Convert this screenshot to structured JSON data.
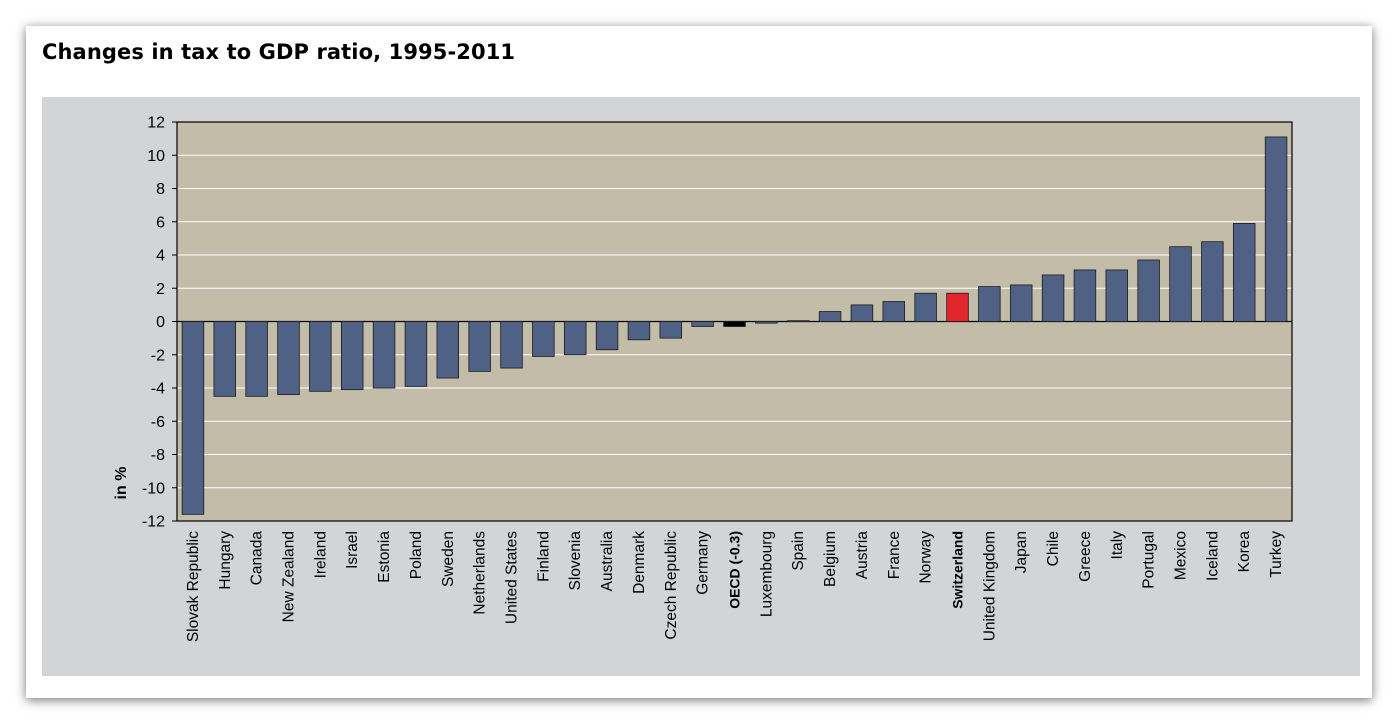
{
  "page": {
    "title": "Changes in tax to GDP ratio, 1995-2011"
  },
  "chart_data": {
    "type": "bar",
    "title": "Changes in tax to GDP ratio, 1995-2011",
    "xlabel": "",
    "ylabel": "in %",
    "ylim": [
      -12,
      12
    ],
    "yticks": [
      12,
      10,
      8,
      6,
      4,
      2,
      0,
      -2,
      -4,
      -6,
      -8,
      -10,
      -12
    ],
    "grid": true,
    "legend": "none",
    "colors": {
      "plot_background": "#c2bca8",
      "panel_background": "#d3d4d6",
      "bar_default": "#4f6285",
      "bar_oecd": "#000000",
      "bar_switzerland": "#e3262e",
      "gridline": "#ffffff"
    },
    "categories": [
      "Slovak Republic",
      "Hungary",
      "Canada",
      "New Zealand",
      "Ireland",
      "Israel",
      "Estonia",
      "Poland",
      "Sweden",
      "Netherlands",
      "United States",
      "Finland",
      "Slovenia",
      "Australia",
      "Denmark",
      "Czech Republic",
      "Germany",
      "OECD (-0.3)",
      "Luxembourg",
      "Spain",
      "Belgium",
      "Austria",
      "France",
      "Norway",
      "Switzerland",
      "United Kingdom",
      "Japan",
      "Chile",
      "Greece",
      "Italy",
      "Portugal",
      "Mexico",
      "Iceland",
      "Korea",
      "Turkey"
    ],
    "values": [
      -11.6,
      -4.5,
      -4.5,
      -4.4,
      -4.2,
      -4.1,
      -4.0,
      -3.9,
      -3.4,
      -3.0,
      -2.8,
      -2.1,
      -2.0,
      -1.7,
      -1.1,
      -1.0,
      -0.3,
      -0.3,
      -0.1,
      0.05,
      0.6,
      1.0,
      1.2,
      1.7,
      1.7,
      2.1,
      2.2,
      2.8,
      3.1,
      3.1,
      3.7,
      4.5,
      4.8,
      5.9,
      11.1
    ],
    "highlighted": [
      "OECD (-0.3)",
      "Switzerland"
    ]
  }
}
